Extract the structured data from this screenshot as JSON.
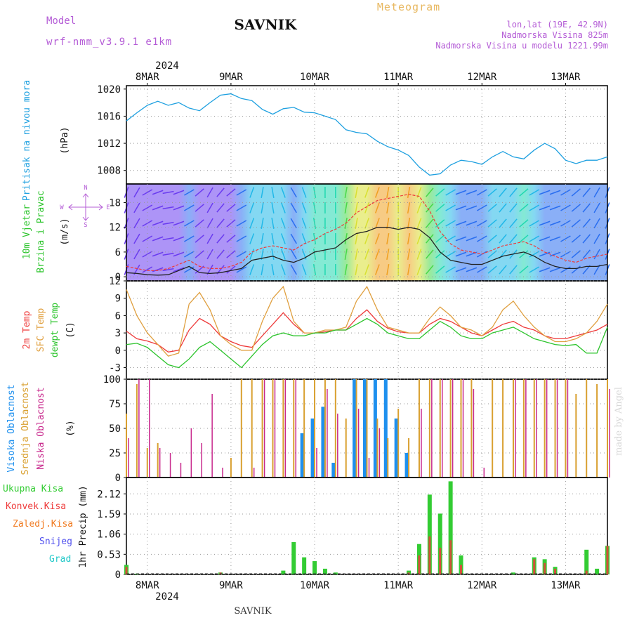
{
  "header": {
    "model_label": "Model",
    "model_name": "wrf-nmm_v3.9.1 e1km",
    "station": "SAVNIK",
    "product": "Meteogram",
    "lonlat": "lon,lat (19E, 42.9N)",
    "elevation": "Nadmorska Visina 825m",
    "model_elevation": "Nadmorska Visina u modelu 1221.99m",
    "footer_station": "SAVNIK",
    "watermark": "made by Angel"
  },
  "time_axis": {
    "year": "2024",
    "days": [
      "8MAR",
      "9MAR",
      "10MAR",
      "11MAR",
      "12MAR",
      "13MAR"
    ],
    "start": "2024-03-07T18:00",
    "end": "2024-03-13T12:00"
  },
  "colors": {
    "pressure": "#1ea0e0",
    "t2m": "#ee3a3a",
    "sfc": "#e0a040",
    "dewpt": "#2cc42c",
    "high_cloud": "#1e90ee",
    "mid_cloud": "#d9a030",
    "low_cloud": "#c8288c",
    "total_precip": "#33cc33",
    "conv_precip": "#ee3a3a",
    "frozen_precip": "#f07a20",
    "snow": "#5050ee",
    "hail": "#20c8c8",
    "wind_speed": "#222222",
    "gust": "#ee3a3a"
  },
  "legend": {
    "wind_compass": {
      "n": "N",
      "s": "S",
      "e": "E",
      "w": "W"
    }
  },
  "chart_data": [
    {
      "type": "line",
      "title": "",
      "ylabel": [
        "Pritisak na nivou mora",
        "(hPa)"
      ],
      "yticks": [
        "1008",
        "1012",
        "1016",
        "1020"
      ],
      "ylim": [
        1006,
        1020.5
      ],
      "grid": true,
      "x": [
        "2024-03-07T18:00",
        "2024-03-07T21:00",
        "2024-03-08T00:00",
        "2024-03-08T03:00",
        "2024-03-08T06:00",
        "2024-03-08T09:00",
        "2024-03-08T12:00",
        "2024-03-08T15:00",
        "2024-03-08T18:00",
        "2024-03-08T21:00",
        "2024-03-09T00:00",
        "2024-03-09T03:00",
        "2024-03-09T06:00",
        "2024-03-09T09:00",
        "2024-03-09T12:00",
        "2024-03-09T15:00",
        "2024-03-09T18:00",
        "2024-03-09T21:00",
        "2024-03-10T00:00",
        "2024-03-10T03:00",
        "2024-03-10T06:00",
        "2024-03-10T09:00",
        "2024-03-10T12:00",
        "2024-03-10T15:00",
        "2024-03-10T18:00",
        "2024-03-10T21:00",
        "2024-03-11T00:00",
        "2024-03-11T03:00",
        "2024-03-11T06:00",
        "2024-03-11T09:00",
        "2024-03-11T12:00",
        "2024-03-11T15:00",
        "2024-03-11T18:00",
        "2024-03-11T21:00",
        "2024-03-12T00:00",
        "2024-03-12T03:00",
        "2024-03-12T06:00",
        "2024-03-12T09:00",
        "2024-03-12T12:00",
        "2024-03-12T15:00",
        "2024-03-12T18:00",
        "2024-03-12T21:00",
        "2024-03-13T00:00",
        "2024-03-13T03:00",
        "2024-03-13T06:00",
        "2024-03-13T09:00",
        "2024-03-13T12:00"
      ],
      "series": [
        {
          "values": [
            1015.3,
            1016.5,
            1017.6,
            1018.2,
            1017.6,
            1018.0,
            1017.2,
            1016.8,
            1018.0,
            1019.1,
            1019.3,
            1018.6,
            1018.3,
            1017.0,
            1016.3,
            1017.1,
            1017.3,
            1016.6,
            1016.5,
            1016.0,
            1015.5,
            1014.0,
            1013.6,
            1013.4,
            1012.3,
            1011.5,
            1011.0,
            1010.2,
            1008.5,
            1007.3,
            1007.5,
            1008.8,
            1009.5,
            1009.3,
            1008.9,
            1010.0,
            1010.8,
            1010.0,
            1009.7,
            1011.0,
            1012.0,
            1011.2,
            1009.5,
            1009.0,
            1009.5,
            1009.5,
            1010.0
          ]
        }
      ]
    },
    {
      "type": "line",
      "title": "",
      "ylabel": [
        "10m Vjetar",
        "Brzina i Pravac",
        "(m/s)"
      ],
      "yticks": [
        "0",
        "6",
        "12",
        "18"
      ],
      "ylim": [
        -1,
        22.5
      ],
      "grid": true,
      "x": [
        "2024-03-07T18:00",
        "2024-03-07T21:00",
        "2024-03-08T00:00",
        "2024-03-08T03:00",
        "2024-03-08T06:00",
        "2024-03-08T09:00",
        "2024-03-08T12:00",
        "2024-03-08T15:00",
        "2024-03-08T18:00",
        "2024-03-08T21:00",
        "2024-03-09T00:00",
        "2024-03-09T03:00",
        "2024-03-09T06:00",
        "2024-03-09T09:00",
        "2024-03-09T12:00",
        "2024-03-09T15:00",
        "2024-03-09T18:00",
        "2024-03-09T21:00",
        "2024-03-10T00:00",
        "2024-03-10T03:00",
        "2024-03-10T06:00",
        "2024-03-10T09:00",
        "2024-03-10T12:00",
        "2024-03-10T15:00",
        "2024-03-10T18:00",
        "2024-03-10T21:00",
        "2024-03-11T00:00",
        "2024-03-11T03:00",
        "2024-03-11T06:00",
        "2024-03-11T09:00",
        "2024-03-11T12:00",
        "2024-03-11T15:00",
        "2024-03-11T18:00",
        "2024-03-11T21:00",
        "2024-03-12T00:00",
        "2024-03-12T03:00",
        "2024-03-12T06:00",
        "2024-03-12T09:00",
        "2024-03-12T12:00",
        "2024-03-12T15:00",
        "2024-03-12T18:00",
        "2024-03-12T21:00",
        "2024-03-13T00:00",
        "2024-03-13T03:00",
        "2024-03-13T06:00",
        "2024-03-13T09:00",
        "2024-03-13T12:00"
      ],
      "series": [
        {
          "values": [
            1.0,
            0.8,
            0.5,
            0.4,
            0.5,
            1.5,
            2.5,
            1.0,
            0.8,
            1.0,
            1.5,
            2.0,
            4.0,
            4.5,
            5.0,
            4.0,
            3.5,
            4.5,
            6.0,
            6.5,
            7.0,
            9.0,
            10.5,
            11.0,
            12.0,
            12.0,
            11.5,
            12.0,
            11.5,
            9.5,
            6.0,
            4.0,
            3.5,
            3.0,
            3.0,
            4.0,
            5.0,
            5.5,
            6.0,
            5.0,
            3.5,
            2.5,
            2.0,
            2.0,
            2.5,
            2.5,
            3.0
          ]
        },
        {
          "values": [
            2.5,
            2.0,
            1.5,
            1.5,
            2.0,
            3.0,
            4.0,
            2.5,
            2.0,
            2.0,
            2.5,
            3.5,
            6.0,
            7.0,
            7.5,
            7.0,
            6.5,
            8.0,
            9.0,
            10.5,
            11.5,
            13.0,
            15.5,
            17.0,
            18.5,
            19.0,
            19.5,
            20.0,
            19.5,
            16.0,
            11.0,
            8.0,
            6.5,
            6.0,
            5.5,
            6.5,
            7.5,
            8.0,
            8.5,
            7.5,
            6.0,
            5.0,
            4.0,
            3.5,
            4.5,
            5.0,
            5.5
          ]
        }
      ],
      "wind_direction_deg": [
        200,
        210,
        240,
        250,
        260,
        250,
        240,
        230,
        210,
        220,
        230,
        240,
        200,
        190,
        170,
        160,
        150,
        160,
        170,
        180,
        180,
        190,
        190,
        200,
        200,
        190,
        180,
        190,
        200,
        220,
        230,
        240,
        250,
        250,
        240,
        230,
        220,
        220,
        230,
        240,
        250,
        250,
        240,
        230,
        220,
        210,
        200
      ]
    },
    {
      "type": "line",
      "title": "",
      "ylabel": [
        "2m Temp",
        "SFC Temp",
        "dewpt Temp",
        "(C)"
      ],
      "yticks": [
        "-3",
        "0",
        "3",
        "6",
        "9",
        "12"
      ],
      "ylim": [
        -5,
        12
      ],
      "grid": true,
      "x": [
        "2024-03-07T18:00",
        "2024-03-07T21:00",
        "2024-03-08T00:00",
        "2024-03-08T03:00",
        "2024-03-08T06:00",
        "2024-03-08T09:00",
        "2024-03-08T12:00",
        "2024-03-08T15:00",
        "2024-03-08T18:00",
        "2024-03-08T21:00",
        "2024-03-09T00:00",
        "2024-03-09T03:00",
        "2024-03-09T06:00",
        "2024-03-09T09:00",
        "2024-03-09T12:00",
        "2024-03-09T15:00",
        "2024-03-09T18:00",
        "2024-03-09T21:00",
        "2024-03-10T00:00",
        "2024-03-10T03:00",
        "2024-03-10T06:00",
        "2024-03-10T09:00",
        "2024-03-10T12:00",
        "2024-03-10T15:00",
        "2024-03-10T18:00",
        "2024-03-10T21:00",
        "2024-03-11T00:00",
        "2024-03-11T03:00",
        "2024-03-11T06:00",
        "2024-03-11T09:00",
        "2024-03-11T12:00",
        "2024-03-11T15:00",
        "2024-03-11T18:00",
        "2024-03-11T21:00",
        "2024-03-12T00:00",
        "2024-03-12T03:00",
        "2024-03-12T06:00",
        "2024-03-12T09:00",
        "2024-03-12T12:00",
        "2024-03-12T15:00",
        "2024-03-12T18:00",
        "2024-03-12T21:00",
        "2024-03-13T00:00",
        "2024-03-13T03:00",
        "2024-03-13T06:00",
        "2024-03-13T09:00",
        "2024-03-13T12:00"
      ],
      "series": [
        {
          "values": [
            3.3,
            2.0,
            1.6,
            1.0,
            -0.3,
            0.0,
            3.5,
            5.5,
            4.5,
            2.5,
            1.5,
            0.8,
            0.5,
            2.5,
            4.5,
            6.5,
            4.5,
            3.0,
            3.0,
            3.2,
            3.5,
            3.5,
            5.5,
            7.0,
            5.0,
            3.8,
            3.2,
            3.0,
            3.0,
            4.5,
            5.5,
            5.0,
            4.0,
            3.0,
            2.5,
            3.5,
            4.5,
            5.0,
            4.0,
            3.5,
            2.5,
            2.0,
            2.0,
            2.5,
            3.0,
            3.5,
            4.5
          ]
        },
        {
          "values": [
            10.5,
            6.0,
            3.0,
            1.0,
            -1.0,
            -0.5,
            8.0,
            10.0,
            7.0,
            2.5,
            1.0,
            0.0,
            0.0,
            5.0,
            9.0,
            11.0,
            5.0,
            3.0,
            3.0,
            3.5,
            3.5,
            4.0,
            8.5,
            11.0,
            7.0,
            4.0,
            3.5,
            3.0,
            3.0,
            5.5,
            7.5,
            6.0,
            4.0,
            3.5,
            2.5,
            4.0,
            7.0,
            8.5,
            6.0,
            4.0,
            2.5,
            1.5,
            1.5,
            2.0,
            3.0,
            5.0,
            8.0
          ]
        },
        {
          "values": [
            1.0,
            1.2,
            0.5,
            -1.0,
            -2.5,
            -3.0,
            -1.5,
            0.5,
            1.5,
            0.0,
            -1.5,
            -3.0,
            -1.0,
            1.0,
            2.5,
            3.0,
            2.5,
            2.5,
            3.0,
            3.0,
            3.5,
            3.5,
            4.5,
            5.5,
            4.5,
            3.0,
            2.5,
            2.0,
            2.0,
            3.5,
            5.0,
            4.0,
            2.5,
            2.0,
            2.0,
            3.0,
            3.5,
            4.0,
            3.0,
            2.0,
            1.5,
            1.0,
            0.8,
            1.0,
            -0.5,
            -0.5,
            4.0
          ]
        }
      ]
    },
    {
      "type": "bar",
      "title": "",
      "ylabel": [
        "Visoka Oblacnost",
        "Srednja Oblacnost",
        "Niska Oblacnost",
        "(%)"
      ],
      "yticks": [
        "0",
        "25",
        "50",
        "75",
        "100"
      ],
      "ylim": [
        0,
        100
      ],
      "grid": true,
      "x": [
        "2024-03-07T18:00",
        "2024-03-07T21:00",
        "2024-03-08T00:00",
        "2024-03-08T03:00",
        "2024-03-08T06:00",
        "2024-03-08T09:00",
        "2024-03-08T12:00",
        "2024-03-08T15:00",
        "2024-03-08T18:00",
        "2024-03-08T21:00",
        "2024-03-09T00:00",
        "2024-03-09T03:00",
        "2024-03-09T06:00",
        "2024-03-09T09:00",
        "2024-03-09T12:00",
        "2024-03-09T15:00",
        "2024-03-09T18:00",
        "2024-03-09T21:00",
        "2024-03-10T00:00",
        "2024-03-10T03:00",
        "2024-03-10T06:00",
        "2024-03-10T09:00",
        "2024-03-10T12:00",
        "2024-03-10T15:00",
        "2024-03-10T18:00",
        "2024-03-10T21:00",
        "2024-03-11T00:00",
        "2024-03-11T03:00",
        "2024-03-11T06:00",
        "2024-03-11T09:00",
        "2024-03-11T12:00",
        "2024-03-11T15:00",
        "2024-03-11T18:00",
        "2024-03-11T21:00",
        "2024-03-12T00:00",
        "2024-03-12T03:00",
        "2024-03-12T06:00",
        "2024-03-12T09:00",
        "2024-03-12T12:00",
        "2024-03-12T15:00",
        "2024-03-12T18:00",
        "2024-03-12T21:00",
        "2024-03-13T00:00",
        "2024-03-13T03:00",
        "2024-03-13T06:00",
        "2024-03-13T09:00",
        "2024-03-13T12:00"
      ],
      "series": [
        {
          "values": [
            0,
            0,
            0,
            0,
            0,
            0,
            0,
            0,
            0,
            0,
            0,
            0,
            0,
            0,
            0,
            0,
            0,
            45,
            60,
            72,
            15,
            0,
            100,
            100,
            100,
            100,
            60,
            25,
            0,
            0,
            0,
            0,
            0,
            0,
            0,
            0,
            0,
            0,
            0,
            0,
            0,
            0,
            0,
            0,
            0,
            0,
            0
          ]
        },
        {
          "values": [
            65,
            95,
            30,
            35,
            0,
            0,
            0,
            0,
            0,
            0,
            20,
            100,
            100,
            100,
            100,
            100,
            100,
            100,
            100,
            100,
            100,
            60,
            100,
            100,
            60,
            40,
            70,
            40,
            100,
            100,
            100,
            100,
            100,
            100,
            0,
            100,
            100,
            100,
            100,
            100,
            100,
            100,
            100,
            85,
            100,
            95,
            100
          ]
        },
        {
          "values": [
            40,
            100,
            100,
            30,
            25,
            15,
            50,
            35,
            85,
            10,
            0,
            0,
            10,
            100,
            100,
            100,
            100,
            0,
            30,
            90,
            65,
            0,
            70,
            20,
            50,
            0,
            0,
            0,
            70,
            100,
            100,
            100,
            100,
            90,
            10,
            0,
            0,
            100,
            100,
            100,
            100,
            100,
            100,
            0,
            0,
            0,
            90
          ]
        }
      ]
    },
    {
      "type": "bar",
      "title": "",
      "ylabel": [
        "1hr Precip (mm)"
      ],
      "yticks": [
        "0",
        "0.53",
        "1.06",
        "1.59",
        "2.12"
      ],
      "ylim": [
        0,
        2.55
      ],
      "grid": true,
      "legend": [
        "Ukupna Kisa",
        "Konvek.Kisa",
        "Zaledj.Kisa",
        "Snijeg",
        "Grad"
      ],
      "x": [
        "2024-03-07T18:00",
        "2024-03-07T21:00",
        "2024-03-08T00:00",
        "2024-03-08T03:00",
        "2024-03-08T06:00",
        "2024-03-08T09:00",
        "2024-03-08T12:00",
        "2024-03-08T15:00",
        "2024-03-08T18:00",
        "2024-03-08T21:00",
        "2024-03-09T00:00",
        "2024-03-09T03:00",
        "2024-03-09T06:00",
        "2024-03-09T09:00",
        "2024-03-09T12:00",
        "2024-03-09T15:00",
        "2024-03-09T18:00",
        "2024-03-09T21:00",
        "2024-03-10T00:00",
        "2024-03-10T03:00",
        "2024-03-10T06:00",
        "2024-03-10T09:00",
        "2024-03-10T12:00",
        "2024-03-10T15:00",
        "2024-03-10T18:00",
        "2024-03-10T21:00",
        "2024-03-11T00:00",
        "2024-03-11T03:00",
        "2024-03-11T06:00",
        "2024-03-11T09:00",
        "2024-03-11T12:00",
        "2024-03-11T15:00",
        "2024-03-11T18:00",
        "2024-03-11T21:00",
        "2024-03-12T00:00",
        "2024-03-12T03:00",
        "2024-03-12T06:00",
        "2024-03-12T09:00",
        "2024-03-12T12:00",
        "2024-03-12T15:00",
        "2024-03-12T18:00",
        "2024-03-12T21:00",
        "2024-03-13T00:00",
        "2024-03-13T03:00",
        "2024-03-13T06:00",
        "2024-03-13T09:00",
        "2024-03-13T12:00"
      ],
      "series": [
        {
          "values": [
            0.25,
            0.02,
            0.0,
            0.0,
            0.0,
            0.0,
            0.0,
            0.0,
            0.0,
            0.05,
            0.0,
            0.0,
            0.0,
            0.0,
            0.0,
            0.1,
            0.85,
            0.45,
            0.35,
            0.15,
            0.05,
            0.0,
            0.0,
            0.0,
            0.0,
            0.0,
            0.0,
            0.1,
            0.8,
            2.1,
            1.6,
            2.45,
            0.5,
            0.0,
            0.0,
            0.0,
            0.0,
            0.05,
            0.0,
            0.45,
            0.4,
            0.2,
            0.0,
            0.0,
            0.65,
            0.15,
            0.75
          ]
        },
        {
          "values": [
            0.2,
            0.0,
            0.0,
            0.0,
            0.0,
            0.0,
            0.0,
            0.0,
            0.0,
            0.05,
            0.0,
            0.0,
            0.0,
            0.0,
            0.0,
            0.0,
            0.0,
            0.0,
            0.0,
            0.0,
            0.0,
            0.0,
            0.0,
            0.0,
            0.0,
            0.0,
            0.0,
            0.05,
            0.5,
            1.0,
            0.7,
            0.9,
            0.25,
            0.0,
            0.0,
            0.0,
            0.0,
            0.0,
            0.0,
            0.4,
            0.3,
            0.15,
            0.0,
            0.0,
            0.1,
            0.0,
            0.75
          ]
        }
      ]
    }
  ]
}
